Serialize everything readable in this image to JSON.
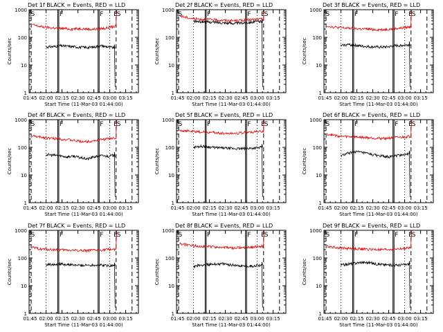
{
  "figure": {
    "background": "#ffffff",
    "events_color": "#000000",
    "lld_color": "#e00000"
  },
  "chart_data": [
    {
      "type": "line",
      "title": "Det 1f BLACK = Events, RED = LLD",
      "xlabel": "Start Time (11-Mar-03 01:44:00)",
      "ylabel": "Counts/sec",
      "x_ticks": [
        "01:45",
        "02:00",
        "02:15",
        "02:30",
        "02:45",
        "03:00",
        "03:15"
      ],
      "y_ticks": [
        "1",
        "10",
        "100",
        "1000"
      ],
      "ylim": [
        1,
        1000
      ],
      "y_scale": "log",
      "markers": [
        "S",
        "F",
        "F",
        "E",
        "S"
      ],
      "series": [
        {
          "name": "Events",
          "color": "#000000",
          "start": "02:00",
          "end": "03:05",
          "values": [
            45,
            46,
            50,
            48,
            46,
            44,
            43,
            45,
            50,
            45,
            42
          ]
        },
        {
          "name": "LLD",
          "color": "#e00000",
          "start": "01:47",
          "end": "03:06",
          "values": [
            290,
            260,
            240,
            230,
            220,
            215,
            210,
            205,
            200,
            205,
            210,
            200,
            195,
            200,
            210,
            215,
            240,
            250
          ]
        }
      ]
    },
    {
      "type": "line",
      "title": "Det 2f BLACK = Events, RED = LLD",
      "xlabel": "Start Time (11-Mar-03 01:44:00)",
      "ylabel": "Counts/sec",
      "x_ticks": [
        "01:45",
        "02:00",
        "02:15",
        "02:30",
        "02:45",
        "03:00",
        "03:15"
      ],
      "y_ticks": [
        "1",
        "10",
        "100",
        "1000"
      ],
      "ylim": [
        1,
        1000
      ],
      "y_scale": "log",
      "markers": [
        "S",
        "F",
        "F",
        "E",
        "S"
      ],
      "series": [
        {
          "name": "Events",
          "color": "#000000",
          "start": "02:00",
          "end": "03:05",
          "values": [
            380,
            370,
            360,
            350,
            340,
            330,
            320,
            330,
            350,
            370,
            380
          ]
        },
        {
          "name": "LLD",
          "color": "#e00000",
          "start": "01:47",
          "end": "03:06",
          "values": [
            600,
            540,
            500,
            470,
            460,
            450,
            440,
            430,
            420,
            410,
            400,
            400,
            410,
            420,
            430,
            440,
            450,
            460
          ]
        }
      ]
    },
    {
      "type": "line",
      "title": "Det 3f BLACK = Events, RED = LLD",
      "xlabel": "Start Time (11-Mar-03 01:44:00)",
      "ylabel": "Counts/sec",
      "x_ticks": [
        "01:45",
        "02:00",
        "02:15",
        "02:30",
        "02:45",
        "03:00",
        "03:15"
      ],
      "y_ticks": [
        "1",
        "10",
        "100",
        "1000"
      ],
      "ylim": [
        1,
        1000
      ],
      "y_scale": "log",
      "markers": [
        "S",
        "F",
        "F",
        "E",
        "S"
      ],
      "series": [
        {
          "name": "Events",
          "color": "#000000",
          "start": "02:00",
          "end": "03:05",
          "values": [
            50,
            55,
            52,
            48,
            46,
            45,
            44,
            46,
            50,
            52,
            55
          ]
        },
        {
          "name": "LLD",
          "color": "#e00000",
          "start": "01:47",
          "end": "03:06",
          "values": [
            260,
            240,
            230,
            220,
            215,
            210,
            205,
            200,
            200,
            195,
            190,
            190,
            195,
            200,
            210,
            215,
            230,
            240
          ]
        }
      ]
    },
    {
      "type": "line",
      "title": "Det 4f BLACK = Events, RED = LLD",
      "xlabel": "Start Time (11-Mar-03 01:44:00)",
      "ylabel": "Counts/sec",
      "x_ticks": [
        "01:45",
        "02:00",
        "02:15",
        "02:30",
        "02:45",
        "03:00",
        "03:15"
      ],
      "y_ticks": [
        "1",
        "10",
        "100",
        "1000"
      ],
      "ylim": [
        1,
        1000
      ],
      "y_scale": "log",
      "markers": [
        "S",
        "F",
        "F",
        "E",
        "S"
      ],
      "series": [
        {
          "name": "Events",
          "color": "#000000",
          "start": "02:00",
          "end": "03:05",
          "values": [
            55,
            52,
            50,
            45,
            48,
            42,
            38,
            45,
            50,
            48,
            52
          ]
        },
        {
          "name": "LLD",
          "color": "#e00000",
          "start": "01:47",
          "end": "03:06",
          "values": [
            260,
            240,
            230,
            220,
            210,
            205,
            200,
            190,
            180,
            170,
            165,
            160,
            170,
            180,
            190,
            200,
            210,
            220
          ]
        }
      ]
    },
    {
      "type": "line",
      "title": "Det 5f BLACK = Events, RED = LLD",
      "xlabel": "Start Time (11-Mar-03 01:44:00)",
      "ylabel": "Counts/sec",
      "x_ticks": [
        "01:45",
        "02:00",
        "02:15",
        "02:30",
        "02:45",
        "03:00",
        "03:15"
      ],
      "y_ticks": [
        "1",
        "10",
        "100",
        "1000"
      ],
      "ylim": [
        1,
        1000
      ],
      "y_scale": "log",
      "markers": [
        "S",
        "F",
        "F",
        "E",
        "S"
      ],
      "series": [
        {
          "name": "Events",
          "color": "#000000",
          "start": "02:00",
          "end": "03:05",
          "values": [
            100,
            110,
            105,
            98,
            95,
            92,
            90,
            88,
            92,
            95,
            100
          ]
        },
        {
          "name": "LLD",
          "color": "#e00000",
          "start": "01:47",
          "end": "03:06",
          "values": [
            420,
            400,
            380,
            370,
            360,
            355,
            350,
            340,
            330,
            320,
            320,
            325,
            330,
            340,
            350,
            360,
            370,
            380
          ]
        }
      ]
    },
    {
      "type": "line",
      "title": "Det 6f BLACK = Events, RED = LLD",
      "xlabel": "Start Time (11-Mar-03 01:44:00)",
      "ylabel": "Counts/sec",
      "x_ticks": [
        "01:45",
        "02:00",
        "02:15",
        "02:30",
        "02:45",
        "03:00",
        "03:15"
      ],
      "y_ticks": [
        "1",
        "10",
        "100",
        "1000"
      ],
      "ylim": [
        1,
        1000
      ],
      "y_scale": "log",
      "markers": [
        "S",
        "F",
        "F",
        "E",
        "S"
      ],
      "series": [
        {
          "name": "Events",
          "color": "#000000",
          "start": "02:00",
          "end": "03:05",
          "values": [
            50,
            60,
            70,
            65,
            58,
            52,
            48,
            45,
            50,
            55,
            58
          ]
        },
        {
          "name": "LLD",
          "color": "#e00000",
          "start": "01:47",
          "end": "03:06",
          "values": [
            300,
            280,
            260,
            250,
            245,
            240,
            235,
            230,
            225,
            220,
            215,
            210,
            215,
            220,
            225,
            230,
            240,
            250
          ]
        }
      ]
    },
    {
      "type": "line",
      "title": "Det 7f BLACK = Events, RED = LLD",
      "xlabel": "Start Time (11-Mar-03 01:44:00)",
      "ylabel": "Counts/sec",
      "x_ticks": [
        "01:45",
        "02:00",
        "02:15",
        "02:30",
        "02:45",
        "03:00",
        "03:15"
      ],
      "y_ticks": [
        "1",
        "10",
        "100",
        "1000"
      ],
      "ylim": [
        1,
        1000
      ],
      "y_scale": "log",
      "markers": [
        "S",
        "F",
        "F",
        "E",
        "S"
      ],
      "series": [
        {
          "name": "Events",
          "color": "#000000",
          "start": "02:00",
          "end": "03:05",
          "values": [
            58,
            60,
            62,
            58,
            55,
            54,
            55,
            56,
            55,
            54,
            52
          ]
        },
        {
          "name": "LLD",
          "color": "#e00000",
          "start": "01:47",
          "end": "03:06",
          "values": [
            240,
            220,
            210,
            205,
            200,
            198,
            195,
            192,
            190,
            190,
            188,
            186,
            188,
            190,
            195,
            200,
            205,
            210
          ]
        }
      ]
    },
    {
      "type": "line",
      "title": "Det 8f BLACK = Events, RED = LLD",
      "xlabel": "Start Time (11-Mar-03 01:44:00)",
      "ylabel": "Counts/sec",
      "x_ticks": [
        "01:45",
        "02:00",
        "02:15",
        "02:30",
        "02:45",
        "03:00",
        "03:15"
      ],
      "y_ticks": [
        "1",
        "10",
        "100",
        "1000"
      ],
      "ylim": [
        1,
        1000
      ],
      "y_scale": "log",
      "markers": [
        "S",
        "F",
        "F",
        "E",
        "S"
      ],
      "series": [
        {
          "name": "Events",
          "color": "#000000",
          "start": "02:00",
          "end": "03:05",
          "values": [
            50,
            55,
            58,
            60,
            62,
            58,
            55,
            52,
            50,
            52,
            55
          ]
        },
        {
          "name": "LLD",
          "color": "#e00000",
          "start": "01:47",
          "end": "03:06",
          "values": [
            330,
            310,
            290,
            280,
            270,
            265,
            260,
            250,
            245,
            240,
            235,
            230,
            235,
            240,
            245,
            250,
            260,
            270
          ]
        }
      ]
    },
    {
      "type": "line",
      "title": "Det 9f BLACK = Events, RED = LLD",
      "xlabel": "Start Time (11-Mar-03 01:44:00)",
      "ylabel": "Counts/sec",
      "x_ticks": [
        "01:45",
        "02:00",
        "02:15",
        "02:30",
        "02:45",
        "03:00",
        "03:15"
      ],
      "y_ticks": [
        "1",
        "10",
        "100",
        "1000"
      ],
      "ylim": [
        1,
        1000
      ],
      "y_scale": "log",
      "markers": [
        "S",
        "F",
        "F",
        "E",
        "S"
      ],
      "series": [
        {
          "name": "Events",
          "color": "#000000",
          "start": "02:00",
          "end": "03:05",
          "values": [
            55,
            60,
            65,
            70,
            68,
            62,
            58,
            56,
            55,
            57,
            60
          ]
        },
        {
          "name": "LLD",
          "color": "#e00000",
          "start": "01:47",
          "end": "03:06",
          "values": [
            270,
            250,
            240,
            230,
            225,
            220,
            215,
            210,
            208,
            205,
            200,
            198,
            200,
            205,
            210,
            215,
            225,
            235
          ]
        }
      ]
    }
  ]
}
